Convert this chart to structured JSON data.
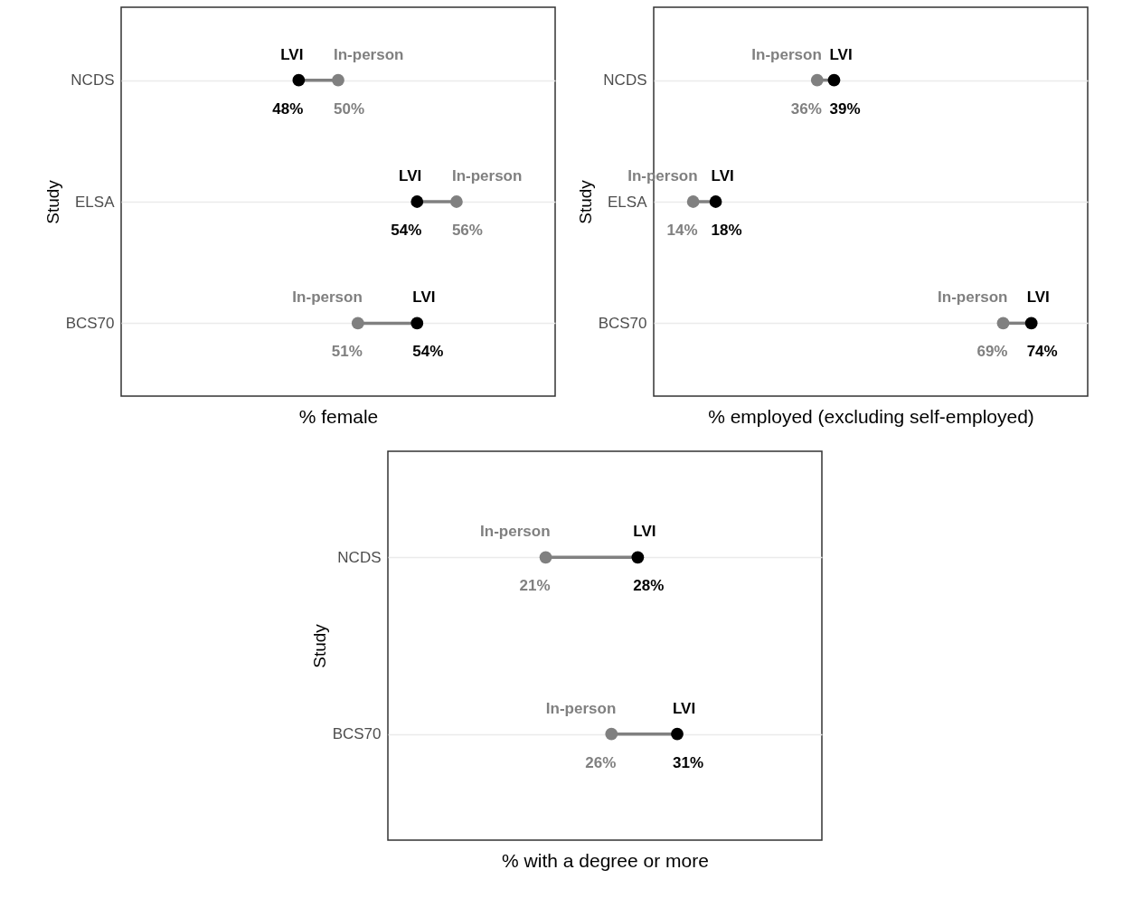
{
  "chart_data": [
    {
      "type": "scatter",
      "orientation": "horizontal",
      "xlabel": "% female",
      "ylabel": "Study",
      "categories": [
        "NCDS",
        "ELSA",
        "BCS70"
      ],
      "xlim": [
        39,
        61
      ],
      "tick_labels": "y",
      "grid": "y",
      "marker": "circle",
      "series": [
        {
          "name": "LVI",
          "color": "#000000",
          "values": [
            48,
            54,
            54
          ],
          "value_labels": [
            "48%",
            "54%",
            "54%"
          ]
        },
        {
          "name": "In-person",
          "color": "#808080",
          "values": [
            50,
            56,
            51
          ],
          "value_labels": [
            "50%",
            "56%",
            "51%"
          ]
        }
      ]
    },
    {
      "type": "scatter",
      "orientation": "horizontal",
      "xlabel": "% employed (excluding self-employed)",
      "ylabel": "Study",
      "categories": [
        "NCDS",
        "ELSA",
        "BCS70"
      ],
      "xlim": [
        7,
        84
      ],
      "tick_labels": "y",
      "grid": "y",
      "marker": "circle",
      "series": [
        {
          "name": "LVI",
          "color": "#000000",
          "values": [
            39,
            18,
            74
          ],
          "value_labels": [
            "39%",
            "18%",
            "74%"
          ]
        },
        {
          "name": "In-person",
          "color": "#808080",
          "values": [
            36,
            14,
            69
          ],
          "value_labels": [
            "36%",
            "14%",
            "69%"
          ]
        }
      ]
    },
    {
      "type": "scatter",
      "orientation": "horizontal",
      "xlabel": "% with a degree or more",
      "ylabel": "Study",
      "categories": [
        "NCDS",
        "BCS70"
      ],
      "xlim": [
        9,
        42
      ],
      "tick_labels": "y",
      "grid": "y",
      "marker": "circle",
      "series": [
        {
          "name": "LVI",
          "color": "#000000",
          "values": [
            28,
            31
          ],
          "value_labels": [
            "28%",
            "31%"
          ]
        },
        {
          "name": "In-person",
          "color": "#808080",
          "values": [
            21,
            26
          ],
          "value_labels": [
            "21%",
            "26%"
          ]
        }
      ]
    }
  ]
}
